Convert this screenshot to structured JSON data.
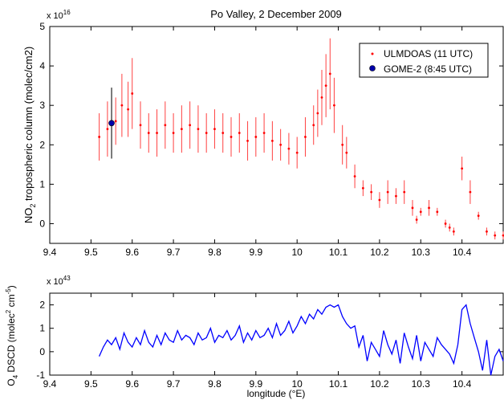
{
  "chart_data": [
    {
      "type": "scatter",
      "title": "Po Valley, 2 December 2009",
      "ylabel_main": "NO",
      "ylabel_sub": "2",
      "ylabel_rest": " tropospheric column (molec/cm2)",
      "exponent_base": "x 10",
      "exponent_power": "16",
      "xlim": [
        9.4,
        10.5
      ],
      "ylim": [
        -0.5,
        5
      ],
      "x_ticks": [
        "9.4",
        "9.5",
        "9.6",
        "9.7",
        "9.8",
        "9.9",
        "10",
        "10.1",
        "10.2",
        "10.3",
        "10.4"
      ],
      "y_ticks": [
        "0",
        "1",
        "2",
        "3",
        "4",
        "5"
      ],
      "legend_position": "top-right",
      "legend": [
        {
          "label": "ULMDOAS (11 UTC)",
          "marker": "red-dot"
        },
        {
          "label": "GOME-2 (8:45 UTC)",
          "marker": "blue-circle"
        }
      ],
      "series": [
        {
          "name": "ULMDOAS (11 UTC)",
          "color": "#ff0000",
          "x": [
            9.52,
            9.54,
            9.56,
            9.575,
            9.59,
            9.6,
            9.62,
            9.64,
            9.66,
            9.68,
            9.7,
            9.72,
            9.74,
            9.76,
            9.78,
            9.8,
            9.82,
            9.84,
            9.86,
            9.88,
            9.9,
            9.92,
            9.94,
            9.96,
            9.98,
            10.0,
            10.02,
            10.04,
            10.05,
            10.06,
            10.07,
            10.08,
            10.09,
            10.11,
            10.12,
            10.14,
            10.16,
            10.18,
            10.2,
            10.22,
            10.24,
            10.26,
            10.28,
            10.29,
            10.3,
            10.32,
            10.34,
            10.36,
            10.37,
            10.38,
            10.4,
            10.42,
            10.44,
            10.46,
            10.48,
            10.5
          ],
          "y": [
            2.2,
            2.4,
            2.6,
            3.0,
            2.9,
            3.3,
            2.5,
            2.3,
            2.3,
            2.5,
            2.3,
            2.4,
            2.5,
            2.4,
            2.3,
            2.4,
            2.3,
            2.2,
            2.3,
            2.1,
            2.2,
            2.3,
            2.1,
            2.0,
            1.9,
            1.8,
            2.2,
            2.5,
            2.8,
            3.2,
            3.5,
            3.8,
            3.0,
            2.0,
            1.8,
            1.2,
            0.9,
            0.8,
            0.6,
            0.8,
            0.7,
            0.8,
            0.4,
            0.1,
            0.3,
            0.4,
            0.3,
            0.0,
            -0.1,
            -0.2,
            1.4,
            0.8,
            0.2,
            -0.2,
            -0.3,
            -0.3
          ],
          "err": [
            0.6,
            0.7,
            0.6,
            0.8,
            0.7,
            0.9,
            0.6,
            0.5,
            0.6,
            0.6,
            0.5,
            0.6,
            0.6,
            0.6,
            0.5,
            0.5,
            0.5,
            0.5,
            0.5,
            0.5,
            0.5,
            0.5,
            0.5,
            0.4,
            0.4,
            0.4,
            0.5,
            0.5,
            0.6,
            0.7,
            0.8,
            0.9,
            0.7,
            0.5,
            0.4,
            0.3,
            0.2,
            0.2,
            0.2,
            0.3,
            0.2,
            0.3,
            0.2,
            0.1,
            0.1,
            0.2,
            0.1,
            0.1,
            0.1,
            0.1,
            0.3,
            0.3,
            0.1,
            0.1,
            0.1,
            0.1
          ]
        },
        {
          "name": "GOME-2 (8:45 UTC)",
          "color": "#0000ff",
          "x": [
            9.55
          ],
          "y": [
            2.55
          ],
          "err": [
            0.9
          ]
        }
      ]
    },
    {
      "type": "line",
      "ylabel_main": "O",
      "ylabel_sub": "4",
      "ylabel_rest": " DSCD (molec",
      "ylabel_unit_a": "2",
      "ylabel_unit_mid": " cm",
      "ylabel_unit_b": "-5",
      "ylabel_close": ")",
      "exponent_base": "x 10",
      "exponent_power": "43",
      "xlabel": "longitude (°E)",
      "xlim": [
        9.4,
        10.5
      ],
      "ylim": [
        -1,
        2.5
      ],
      "x_ticks": [
        "9.4",
        "9.5",
        "9.6",
        "9.7",
        "9.8",
        "9.9",
        "10",
        "10.1",
        "10.2",
        "10.3",
        "10.4"
      ],
      "y_ticks": [
        "-1",
        "0",
        "1",
        "2"
      ],
      "series": [
        {
          "color": "#0000ff",
          "x": [
            9.52,
            9.53,
            9.54,
            9.55,
            9.56,
            9.57,
            9.58,
            9.59,
            9.6,
            9.61,
            9.62,
            9.63,
            9.64,
            9.65,
            9.66,
            9.67,
            9.68,
            9.69,
            9.7,
            9.71,
            9.72,
            9.73,
            9.74,
            9.75,
            9.76,
            9.77,
            9.78,
            9.79,
            9.8,
            9.81,
            9.82,
            9.83,
            9.84,
            9.85,
            9.86,
            9.87,
            9.88,
            9.89,
            9.9,
            9.91,
            9.92,
            9.93,
            9.94,
            9.95,
            9.96,
            9.97,
            9.98,
            9.99,
            10.0,
            10.01,
            10.02,
            10.03,
            10.04,
            10.05,
            10.06,
            10.07,
            10.08,
            10.09,
            10.1,
            10.11,
            10.12,
            10.13,
            10.14,
            10.15,
            10.16,
            10.17,
            10.18,
            10.19,
            10.2,
            10.21,
            10.22,
            10.23,
            10.24,
            10.25,
            10.26,
            10.27,
            10.28,
            10.29,
            10.3,
            10.31,
            10.32,
            10.33,
            10.34,
            10.35,
            10.36,
            10.37,
            10.38,
            10.39,
            10.4,
            10.41,
            10.42,
            10.43,
            10.44,
            10.45,
            10.46,
            10.47,
            10.48,
            10.49,
            10.5
          ],
          "y": [
            -0.2,
            0.2,
            0.5,
            0.3,
            0.6,
            0.1,
            0.8,
            0.4,
            0.2,
            0.6,
            0.3,
            0.9,
            0.4,
            0.2,
            0.7,
            0.3,
            0.8,
            0.5,
            0.4,
            0.9,
            0.5,
            0.7,
            0.6,
            0.3,
            0.8,
            0.5,
            0.6,
            1.0,
            0.4,
            0.7,
            0.6,
            0.9,
            0.5,
            0.7,
            1.1,
            0.4,
            0.8,
            0.5,
            0.9,
            0.6,
            0.7,
            1.0,
            0.6,
            1.2,
            0.7,
            0.9,
            1.3,
            0.8,
            1.1,
            1.5,
            1.2,
            1.6,
            1.4,
            1.8,
            1.6,
            1.9,
            2.0,
            1.9,
            2.0,
            1.5,
            1.2,
            1.0,
            1.1,
            0.2,
            0.7,
            -0.4,
            0.4,
            0.1,
            -0.2,
            0.9,
            0.3,
            -0.1,
            0.5,
            -0.5,
            0.8,
            0.2,
            -0.3,
            0.7,
            -0.4,
            0.4,
            0.1,
            -0.2,
            0.6,
            0.3,
            0.1,
            -0.1,
            -0.5,
            0.3,
            1.8,
            2.0,
            1.2,
            0.6,
            0.0,
            -0.8,
            0.5,
            -1.0,
            -0.2,
            0.1,
            -0.4
          ]
        }
      ]
    }
  ]
}
